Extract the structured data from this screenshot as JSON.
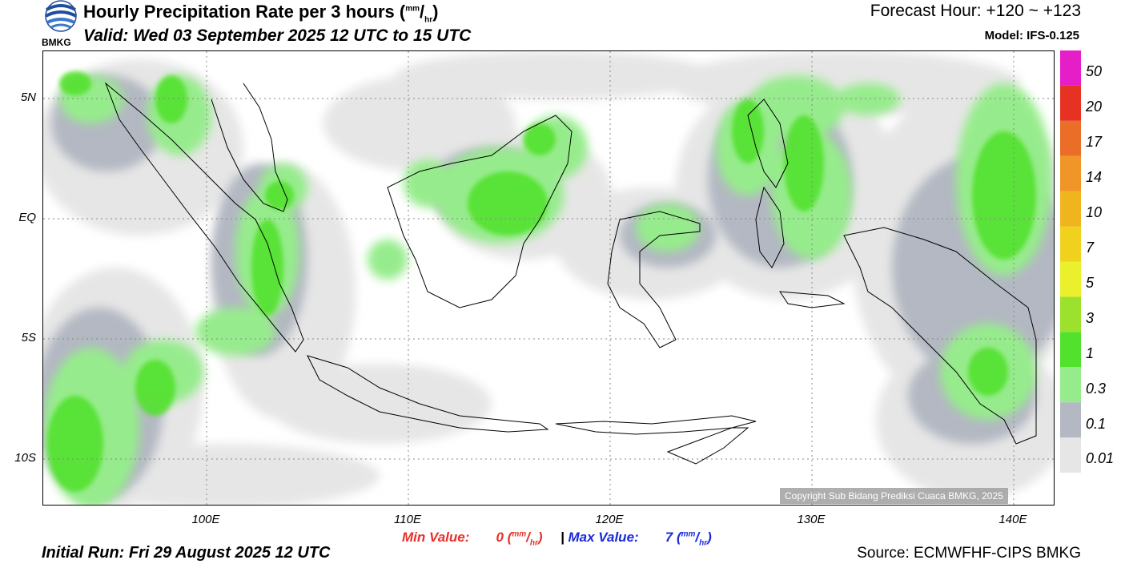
{
  "header": {
    "title_main": "Hourly Precipitation Rate per 3 hours (",
    "title_unit_num": "mm",
    "title_unit_sep": "/",
    "title_unit_den": "hr",
    "title_close": ")",
    "valid": "Valid: Wed 03 September 2025 12 UTC to 15 UTC",
    "forecast_hour": "Forecast Hour: +120 ~ +123",
    "model": "Model: IFS-0.125",
    "logo_text": "BMKG"
  },
  "axes": {
    "lat_labels": [
      {
        "label": "5N",
        "lat": 5
      },
      {
        "label": "EQ",
        "lat": 0
      },
      {
        "label": "5S",
        "lat": -5
      },
      {
        "label": "10S",
        "lat": -10
      }
    ],
    "lon_labels": [
      {
        "label": "100E",
        "lon": 100
      },
      {
        "label": "110E",
        "lon": 110
      },
      {
        "label": "120E",
        "lon": 120
      },
      {
        "label": "130E",
        "lon": 130
      },
      {
        "label": "140E",
        "lon": 140
      }
    ]
  },
  "colorbar": {
    "levels": [
      "0.01",
      "0.1",
      "0.3",
      "1",
      "3",
      "5",
      "7",
      "10",
      "14",
      "17",
      "20",
      "50"
    ],
    "colors": [
      "#e6e6e6",
      "#b3b8c2",
      "#96ec8c",
      "#52e12d",
      "#9be12d",
      "#ebf02d",
      "#f0d21e",
      "#f0b41e",
      "#f09628",
      "#eb6e28",
      "#e63223",
      "#e61ec8"
    ]
  },
  "footer": {
    "min_label": "Min Value:",
    "min_value": "0",
    "max_label": "Max Value:",
    "max_value": "7",
    "unit_num": "mm",
    "unit_den": "hr",
    "separator": "|",
    "initial_run": "Initial Run: Fri 29 August 2025 12 UTC",
    "source": "Source: ECMWFHF-CIPS BMKG",
    "copyright": "Copyright Sub Bidang Prediksi Cuaca BMKG, 2025"
  }
}
